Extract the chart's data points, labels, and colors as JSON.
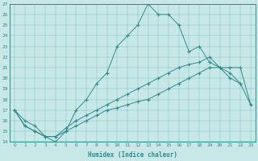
{
  "line1_x": [
    0,
    1,
    2,
    3,
    4,
    5,
    6,
    7,
    8,
    9,
    10,
    11,
    12,
    13,
    14,
    15,
    16,
    17,
    18,
    19,
    20,
    21,
    22
  ],
  "line1_y": [
    17,
    16,
    15.5,
    14.5,
    14,
    15,
    17,
    18,
    19.5,
    20.5,
    23,
    24,
    25,
    27,
    26,
    26,
    25,
    22.5,
    23,
    21.5,
    21,
    20,
    19.5
  ],
  "line2_x": [
    0,
    1,
    2,
    3,
    4,
    5,
    6,
    7,
    8,
    9,
    10,
    11,
    12,
    13,
    14,
    15,
    16,
    17,
    18,
    19,
    20,
    21,
    22,
    23
  ],
  "line2_y": [
    17,
    15.5,
    15,
    14.5,
    14.5,
    15.3,
    16,
    16.5,
    17,
    17.5,
    18,
    18.5,
    19,
    19.5,
    20,
    20.5,
    21,
    21.3,
    21.5,
    22,
    21,
    20.5,
    19.5,
    17.5
  ],
  "line3_x": [
    0,
    1,
    2,
    3,
    4,
    5,
    6,
    7,
    8,
    9,
    10,
    11,
    12,
    13,
    14,
    15,
    16,
    17,
    18,
    19,
    20,
    21,
    22,
    23
  ],
  "line3_y": [
    17,
    15.5,
    15,
    14.5,
    14.5,
    15,
    15.5,
    16,
    16.5,
    17,
    17.2,
    17.5,
    17.8,
    18,
    18.5,
    19,
    19.5,
    20,
    20.5,
    21,
    21,
    21,
    21,
    17.5
  ],
  "color": "#2e8b8b",
  "bg_color": "#c8e8e8",
  "xlabel": "Humidex (Indice chaleur)",
  "xlim": [
    -0.5,
    23.5
  ],
  "ylim": [
    14,
    27
  ],
  "yticks": [
    14,
    15,
    16,
    17,
    18,
    19,
    20,
    21,
    22,
    23,
    24,
    25,
    26,
    27
  ],
  "xticks": [
    0,
    1,
    2,
    3,
    4,
    5,
    6,
    7,
    8,
    9,
    10,
    11,
    12,
    13,
    14,
    15,
    16,
    17,
    18,
    19,
    20,
    21,
    22,
    23
  ]
}
